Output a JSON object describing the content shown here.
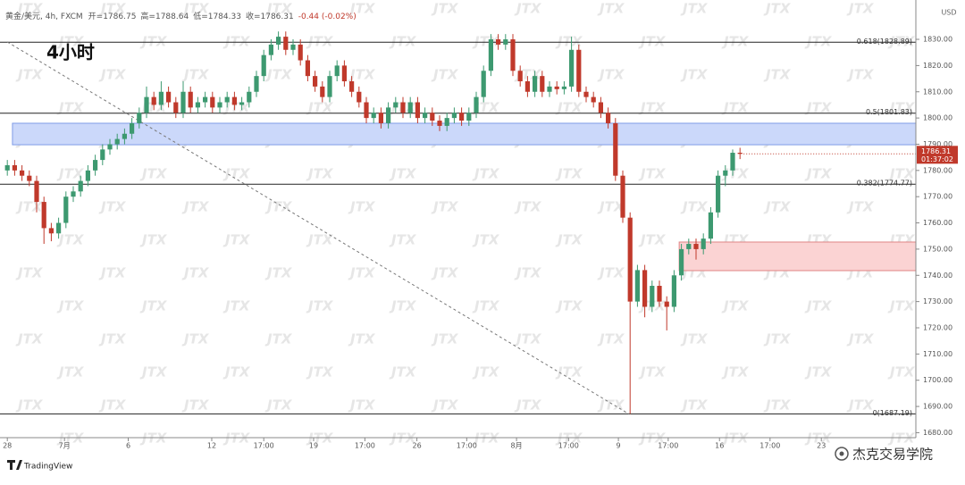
{
  "chart_data": {
    "type": "candlestick",
    "title": "4小时",
    "symbol": "黄金/美元, 4h, FXCM",
    "ohlc_labels": [
      "开=",
      "高=",
      "低=",
      "收="
    ],
    "change": "-0.44 (-0.02%)",
    "currency": "USD",
    "countdown": "01:37:02",
    "brand": "TradingView",
    "watermark": "JTX",
    "credit": "杰克交易学院",
    "up_color": "#3d9970",
    "down_color": "#c0392b",
    "grid": false,
    "x": [
      0,
      1,
      2,
      3,
      4,
      5,
      6,
      7,
      8,
      9,
      10,
      11,
      12,
      13,
      14,
      15,
      16,
      17,
      18,
      19,
      20,
      21,
      22,
      23,
      24,
      25,
      26,
      27,
      28,
      29,
      30,
      31,
      32,
      33,
      34,
      35,
      36,
      37,
      38,
      39,
      40,
      41,
      42,
      43,
      44,
      45,
      46,
      47,
      48,
      49,
      50,
      51,
      52,
      53,
      54,
      55,
      56,
      57,
      58,
      59,
      60,
      61,
      62,
      63,
      64,
      65,
      66,
      67,
      68,
      69,
      70,
      71,
      72,
      73,
      74,
      75,
      76,
      77,
      78,
      79,
      80,
      81,
      82,
      83,
      84,
      85,
      86,
      87,
      88,
      89,
      90,
      91,
      92,
      93,
      94,
      95,
      96,
      97,
      98,
      99,
      100
    ],
    "open": [
      1780,
      1782,
      1780,
      1778,
      1776,
      1768,
      1758,
      1756,
      1760,
      1770,
      1772,
      1776,
      1780,
      1784,
      1788,
      1790,
      1792,
      1794,
      1798,
      1802,
      1808,
      1805,
      1810,
      1806,
      1802,
      1810,
      1804,
      1806,
      1808,
      1804,
      1806,
      1808,
      1805,
      1806,
      1810,
      1816,
      1824,
      1828,
      1831,
      1826,
      1828,
      1822,
      1816,
      1812,
      1808,
      1816,
      1820,
      1814,
      1810,
      1806,
      1800,
      1802,
      1798,
      1804,
      1806,
      1802,
      1806,
      1800,
      1802,
      1799,
      1797,
      1800,
      1802,
      1799,
      1802,
      1808,
      1818,
      1830,
      1828,
      1830,
      1818,
      1814,
      1810,
      1816,
      1810,
      1812,
      1811,
      1812,
      1826,
      1810,
      1808,
      1806,
      1802,
      1798,
      1778,
      1762,
      1730,
      1742,
      1728,
      1736,
      1730,
      1728,
      1740,
      1750,
      1752,
      1750,
      1754,
      1764,
      1778,
      1780,
      1786.75
    ],
    "high": [
      1784,
      1784,
      1782,
      1780,
      1778,
      1770,
      1760,
      1762,
      1772,
      1774,
      1778,
      1782,
      1786,
      1790,
      1792,
      1794,
      1796,
      1800,
      1804,
      1812,
      1810,
      1814,
      1812,
      1808,
      1814,
      1812,
      1808,
      1810,
      1810,
      1808,
      1810,
      1810,
      1808,
      1812,
      1818,
      1826,
      1830,
      1833,
      1833,
      1830,
      1830,
      1824,
      1818,
      1814,
      1818,
      1822,
      1822,
      1816,
      1812,
      1808,
      1804,
      1804,
      1806,
      1808,
      1808,
      1808,
      1808,
      1804,
      1804,
      1801,
      1802,
      1804,
      1804,
      1804,
      1810,
      1820,
      1832,
      1832,
      1832,
      1832,
      1820,
      1816,
      1818,
      1818,
      1814,
      1814,
      1814,
      1831,
      1828,
      1812,
      1810,
      1808,
      1804,
      1800,
      1780,
      1764,
      1744,
      1744,
      1738,
      1738,
      1732,
      1742,
      1752,
      1754,
      1754,
      1756,
      1766,
      1780,
      1782,
      1788,
      1788.64
    ],
    "low": [
      1778,
      1778,
      1776,
      1774,
      1764,
      1752,
      1753,
      1754,
      1758,
      1768,
      1770,
      1774,
      1778,
      1782,
      1786,
      1788,
      1790,
      1792,
      1796,
      1800,
      1803,
      1803,
      1804,
      1800,
      1800,
      1802,
      1802,
      1804,
      1802,
      1802,
      1804,
      1803,
      1803,
      1804,
      1808,
      1814,
      1822,
      1826,
      1824,
      1824,
      1820,
      1814,
      1810,
      1806,
      1806,
      1814,
      1812,
      1808,
      1804,
      1798,
      1798,
      1796,
      1796,
      1802,
      1800,
      1800,
      1798,
      1798,
      1797,
      1795,
      1795,
      1798,
      1797,
      1797,
      1800,
      1806,
      1816,
      1826,
      1826,
      1816,
      1812,
      1808,
      1808,
      1808,
      1808,
      1809,
      1809,
      1810,
      1808,
      1806,
      1804,
      1800,
      1796,
      1776,
      1760,
      1687.19,
      1728,
      1724,
      1726,
      1728,
      1719,
      1726,
      1738,
      1748,
      1746,
      1748,
      1752,
      1762,
      1774,
      1778,
      1784.33
    ],
    "close": [
      1782,
      1780,
      1778,
      1776,
      1768,
      1758,
      1756,
      1760,
      1770,
      1772,
      1776,
      1780,
      1784,
      1788,
      1790,
      1792,
      1794,
      1798,
      1802,
      1808,
      1805,
      1810,
      1806,
      1802,
      1810,
      1804,
      1806,
      1808,
      1804,
      1806,
      1808,
      1805,
      1806,
      1810,
      1816,
      1824,
      1828,
      1831,
      1826,
      1828,
      1822,
      1816,
      1812,
      1808,
      1816,
      1820,
      1814,
      1810,
      1806,
      1800,
      1802,
      1798,
      1804,
      1806,
      1802,
      1806,
      1800,
      1802,
      1799,
      1797,
      1800,
      1802,
      1799,
      1802,
      1808,
      1818,
      1830,
      1828,
      1830,
      1818,
      1814,
      1810,
      1816,
      1810,
      1812,
      1811,
      1812,
      1826,
      1810,
      1808,
      1806,
      1802,
      1798,
      1778,
      1762,
      1730,
      1742,
      1728,
      1736,
      1730,
      1728,
      1740,
      1750,
      1752,
      1750,
      1754,
      1764,
      1778,
      1780,
      1786.75,
      1786.31
    ],
    "xlim": [
      -1,
      124
    ],
    "xticks": [
      {
        "value": 0,
        "label": "28"
      },
      {
        "value": 7.8,
        "label": "7月"
      },
      {
        "value": 16.5,
        "label": "6"
      },
      {
        "value": 27.9,
        "label": "12"
      },
      {
        "value": 35,
        "label": "17:00"
      },
      {
        "value": 41.8,
        "label": "19"
      },
      {
        "value": 48.8,
        "label": "17:00"
      },
      {
        "value": 55.9,
        "label": "26"
      },
      {
        "value": 62.7,
        "label": "17:00"
      },
      {
        "value": 69.5,
        "label": "8月"
      },
      {
        "value": 76.6,
        "label": "17:00"
      },
      {
        "value": 83.4,
        "label": "9"
      },
      {
        "value": 90.2,
        "label": "17:00"
      },
      {
        "value": 97.2,
        "label": "16"
      },
      {
        "value": 104.1,
        "label": "17:00"
      },
      {
        "value": 111.1,
        "label": "23"
      }
    ],
    "ylim": [
      1678.1,
      1845
    ],
    "yticks": [
      {
        "value": 1680,
        "label": "1680.00"
      },
      {
        "value": 1690,
        "label": "1690.00"
      },
      {
        "value": 1700,
        "label": "1700.00"
      },
      {
        "value": 1710,
        "label": "1710.00"
      },
      {
        "value": 1720,
        "label": "1720.00"
      },
      {
        "value": 1730,
        "label": "1730.00"
      },
      {
        "value": 1740,
        "label": "1740.00"
      },
      {
        "value": 1750,
        "label": "1750.00"
      },
      {
        "value": 1760,
        "label": "1760.00"
      },
      {
        "value": 1770,
        "label": "1770.00"
      },
      {
        "value": 1780,
        "label": "1780.00"
      },
      {
        "value": 1790,
        "label": "1790.00"
      },
      {
        "value": 1800,
        "label": "1800.00"
      },
      {
        "value": 1810,
        "label": "1810.00"
      },
      {
        "value": 1820,
        "label": "1820.00"
      },
      {
        "value": 1830,
        "label": "1830.00"
      }
    ],
    "levels": [
      {
        "value": 1828.89,
        "label": "0.618(1828.89)"
      },
      {
        "value": 1801.83,
        "label": "0.5(1801.83)"
      },
      {
        "value": 1774.77,
        "label": "0.382(1774.77)"
      },
      {
        "value": 1687.19,
        "label": "0(1687.19)"
      }
    ],
    "zones": [
      {
        "y": [
          1789.8,
          1798
        ],
        "x0": 0.7,
        "color": "#cbd8fa",
        "border": "#7f9be6"
      },
      {
        "y": [
          1741.8,
          1752.7
        ],
        "x0": 91.7,
        "color": "#fbd3d3",
        "border": "#e08585"
      }
    ],
    "trendline": {
      "x": [
        0,
        84.8
      ],
      "y": [
        1829,
        1687.19
      ]
    }
  }
}
